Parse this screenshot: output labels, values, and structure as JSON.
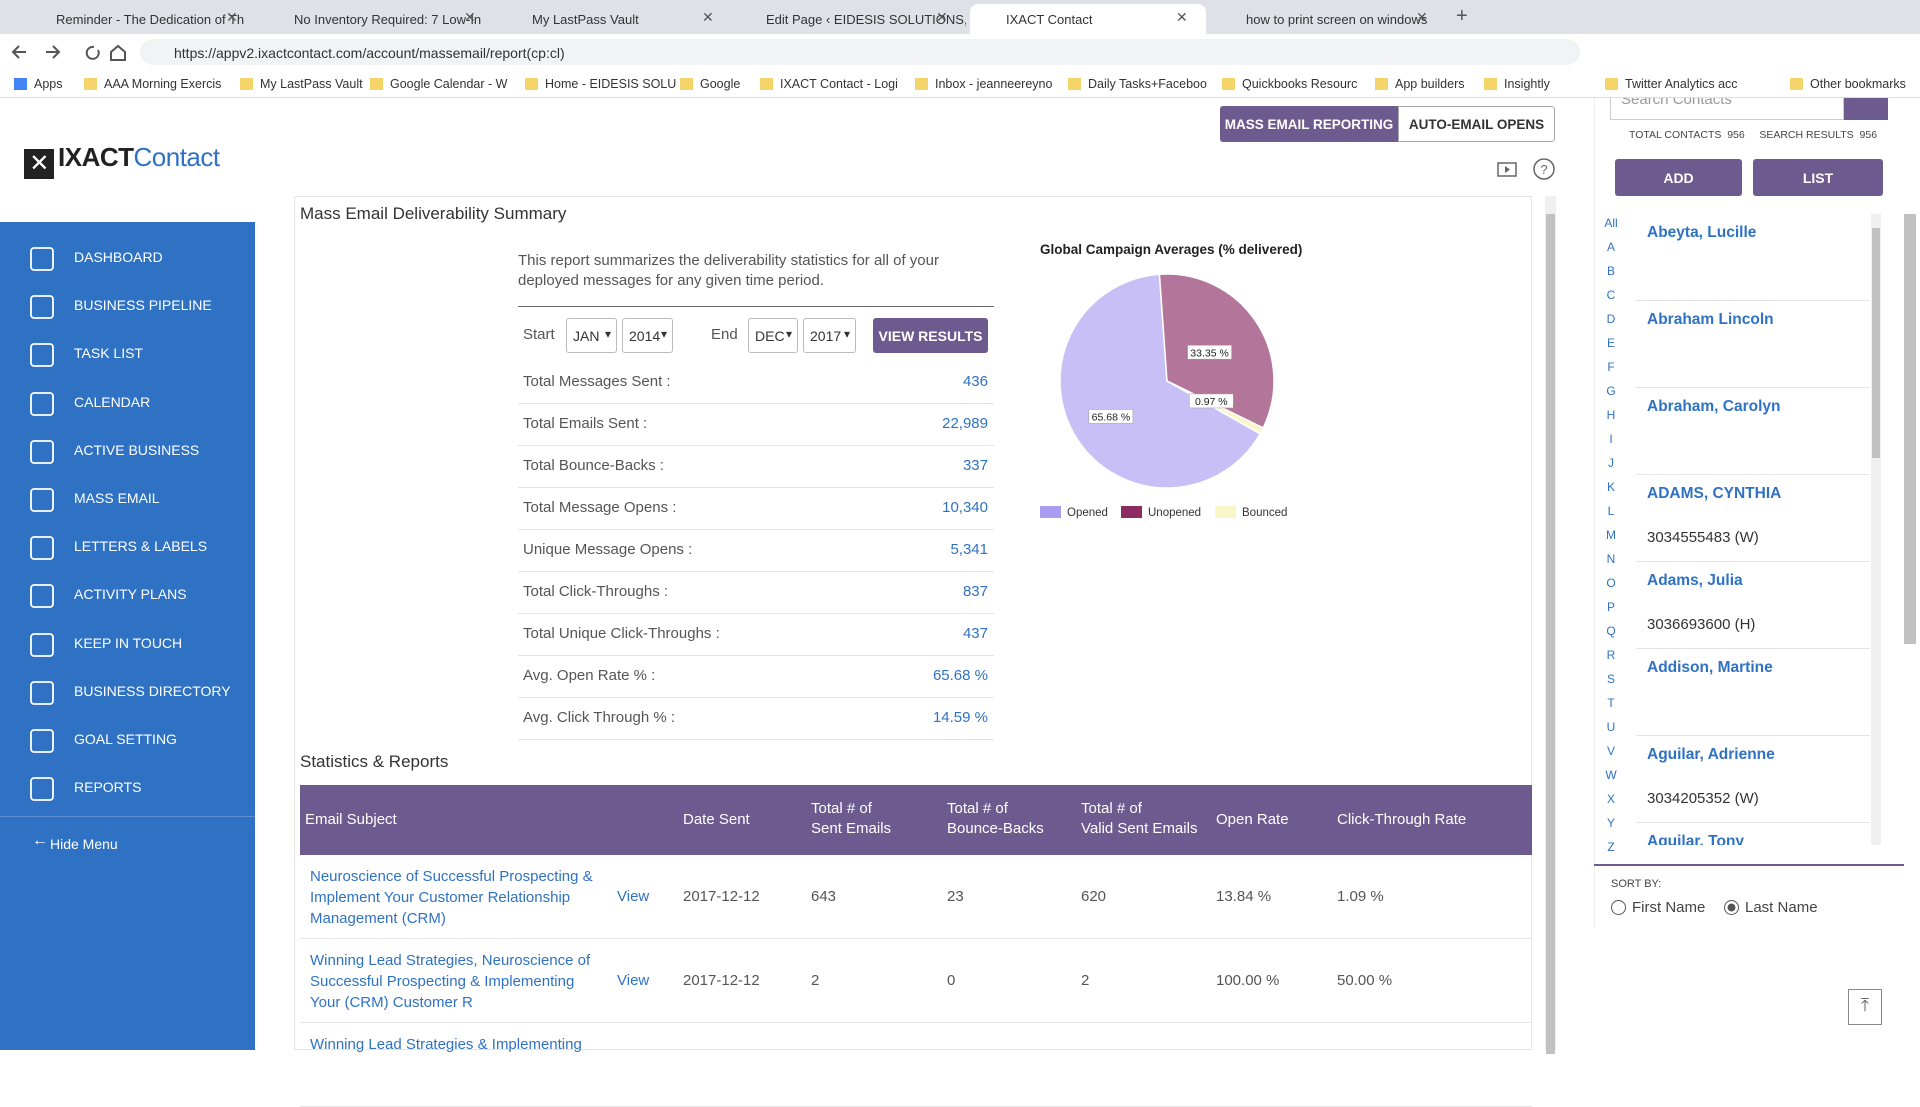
{
  "browser": {
    "tabs": [
      "Reminder - The Dedication of Th",
      "No Inventory Required: 7 Low-In",
      "My LastPass Vault",
      "Edit Page ‹ EIDESIS SOLUTIONS, (",
      "IXACT Contact",
      "how to print screen on windows"
    ],
    "url": "https://appv2.ixactcontact.com/account/massemail/report(cp:cl)",
    "bookmarks": [
      "Apps",
      "AAA Morning Exercis",
      "My LastPass Vault",
      "Google Calendar - W",
      "Home - EIDESIS SOLU",
      "Google",
      "IXACT Contact - Logi",
      "Inbox - jeanneereyno",
      "Daily Tasks+Faceboo",
      "Quickbooks Resourc",
      "App builders",
      "Insightly",
      "Twitter Analytics acc",
      "Other bookmarks"
    ]
  },
  "sidebar": {
    "logo_a": "IXACT",
    "logo_b": "Contact",
    "menu": [
      "DASHBOARD",
      "BUSINESS PIPELINE",
      "TASK LIST",
      "CALENDAR",
      "ACTIVE BUSINESS",
      "MASS EMAIL",
      "LETTERS & LABELS",
      "ACTIVITY PLANS",
      "KEEP IN TOUCH",
      "BUSINESS DIRECTORY",
      "GOAL SETTING",
      "REPORTS"
    ],
    "hide_menu": "Hide Menu"
  },
  "header": {
    "tabs": [
      "MASS EMAIL REPORTING",
      "AUTO-EMAIL OPENS"
    ]
  },
  "summary": {
    "title": "Mass Email Deliverability Summary",
    "description": "This report summarizes the deliverability statistics for all of your deployed messages for any given time period.",
    "start_label": "Start",
    "start_month": "JAN",
    "start_year": "2014",
    "end_label": "End",
    "end_month": "DEC",
    "end_year": "2017",
    "button": "VIEW RESULTS",
    "stats": [
      {
        "label": "Total Messages Sent :",
        "value": "436"
      },
      {
        "label": "Total Emails Sent :",
        "value": "22,989"
      },
      {
        "label": "Total Bounce-Backs :",
        "value": "337"
      },
      {
        "label": "Total Message Opens :",
        "value": "10,340"
      },
      {
        "label": "Unique Message Opens :",
        "value": "5,341"
      },
      {
        "label": "Total Click-Throughs :",
        "value": "837"
      },
      {
        "label": "Total Unique Click-Throughs :",
        "value": "437"
      },
      {
        "label": "Avg. Open Rate % :",
        "value": "65.68 %"
      },
      {
        "label": "Avg. Click Through % :",
        "value": "14.59 %"
      }
    ]
  },
  "chart_data": {
    "type": "pie",
    "title": "Global Campaign Averages (% delivered)",
    "categories": [
      "Opened",
      "Unopened",
      "Bounced"
    ],
    "values": [
      65.68,
      33.35,
      0.97
    ],
    "value_labels": [
      "65.68 %",
      "33.35 %",
      "0.97 %"
    ],
    "colors": [
      "#a99cf0",
      "#8b2b62",
      "#fbf6c8"
    ]
  },
  "reports": {
    "title": "Statistics & Reports",
    "headers": [
      "Email Subject",
      "Date Sent",
      "Total # of\nSent Emails",
      "Total # of\nBounce-Backs",
      "Total # of\nValid Sent Emails",
      "Open Rate",
      "Click-Through Rate"
    ],
    "rows": [
      {
        "subject": "Neuroscience of Successful Prospecting & Implement Your Customer Relationship Management (CRM)",
        "view": "View",
        "cells": [
          "2017-12-12",
          "643",
          "23",
          "620",
          "13.84 %",
          "1.09 %"
        ]
      },
      {
        "subject": "Winning Lead Strategies, Neuroscience of Successful Prospecting & Implementing Your (CRM) Customer R",
        "view": "View",
        "cells": [
          "2017-12-12",
          "2",
          "0",
          "2",
          "100.00 %",
          "50.00 %"
        ]
      },
      {
        "subject": "Winning Lead Strategies & Implementing"
      }
    ]
  },
  "contacts": {
    "search_placeholder": "Search Contacts",
    "total_label": "TOTAL CONTACTS",
    "total": "956",
    "results_label": "SEARCH RESULTS",
    "results": "956",
    "add": "ADD",
    "list": "LIST",
    "letters": [
      "All",
      "A",
      "B",
      "C",
      "D",
      "E",
      "F",
      "G",
      "H",
      "I",
      "J",
      "K",
      "L",
      "M",
      "N",
      "O",
      "P",
      "Q",
      "R",
      "S",
      "T",
      "U",
      "V",
      "W",
      "X",
      "Y",
      "Z"
    ],
    "items": [
      {
        "name": "Abeyta, Lucille"
      },
      {
        "name": "Abraham Lincoln"
      },
      {
        "name": "Abraham, Carolyn"
      },
      {
        "name": "ADAMS, CYNTHIA",
        "phone": "3034555483 (W)"
      },
      {
        "name": "Adams, Julia",
        "phone": "3036693600 (H)"
      },
      {
        "name": "Addison, Martine"
      },
      {
        "name": "Aguilar, Adrienne",
        "phone": "3034205352 (W)"
      },
      {
        "name": "Aguilar, Tony"
      }
    ],
    "sort_label": "SORT BY:",
    "sort_options": [
      "First Name",
      "Last Name"
    ],
    "sort_selected": 1
  }
}
